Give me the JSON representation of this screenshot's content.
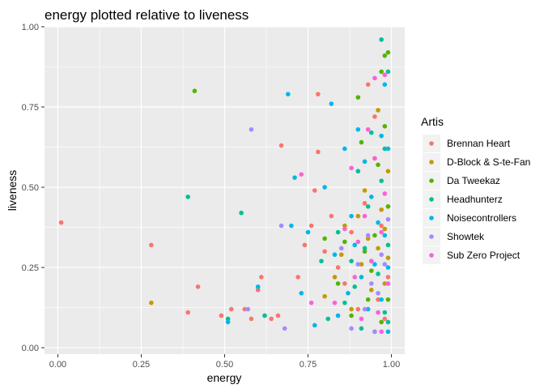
{
  "chart_data": {
    "type": "scatter",
    "title": "energy plotted relative to liveness",
    "xlabel": "energy",
    "ylabel": "liveness",
    "xlim": [
      -0.04,
      1.04
    ],
    "ylim": [
      -0.02,
      1.0
    ],
    "xticks": [
      "0.00",
      "0.25",
      "0.50",
      "0.75",
      "1.00"
    ],
    "xtick_values": [
      0,
      0.25,
      0.5,
      0.75,
      1.0
    ],
    "yticks": [
      "0.00",
      "0.25",
      "0.50",
      "0.75",
      "1.00"
    ],
    "ytick_values": [
      0,
      0.25,
      0.5,
      0.75,
      1.0
    ],
    "grid": true,
    "legend_position": "right",
    "legend_title": "Artis",
    "panel_background": "#EBEBEB",
    "series": [
      {
        "name": "Brennan Heart",
        "color": "#F8766D",
        "points": [
          [
            0.01,
            0.39
          ],
          [
            0.28,
            0.32
          ],
          [
            0.39,
            0.11
          ],
          [
            0.42,
            0.19
          ],
          [
            0.49,
            0.1
          ],
          [
            0.52,
            0.12
          ],
          [
            0.56,
            0.12
          ],
          [
            0.58,
            0.09
          ],
          [
            0.6,
            0.18
          ],
          [
            0.61,
            0.22
          ],
          [
            0.64,
            0.09
          ],
          [
            0.66,
            0.1
          ],
          [
            0.67,
            0.63
          ],
          [
            0.72,
            0.22
          ],
          [
            0.74,
            0.32
          ],
          [
            0.76,
            0.38
          ],
          [
            0.77,
            0.49
          ],
          [
            0.78,
            0.79
          ],
          [
            0.78,
            0.61
          ],
          [
            0.8,
            0.3
          ],
          [
            0.82,
            0.41
          ],
          [
            0.84,
            0.25
          ],
          [
            0.86,
            0.2
          ],
          [
            0.88,
            0.36
          ],
          [
            0.9,
            0.12
          ],
          [
            0.92,
            0.45
          ],
          [
            0.93,
            0.82
          ],
          [
            0.94,
            0.27
          ],
          [
            0.95,
            0.72
          ],
          [
            0.96,
            0.15
          ],
          [
            0.97,
            0.38
          ],
          [
            0.98,
            0.09
          ],
          [
            0.99,
            0.22
          ]
        ]
      },
      {
        "name": "D-Block & S-te-Fan",
        "color": "#C49A00",
        "points": [
          [
            0.28,
            0.14
          ],
          [
            0.8,
            0.16
          ],
          [
            0.83,
            0.22
          ],
          [
            0.85,
            0.29
          ],
          [
            0.86,
            0.38
          ],
          [
            0.88,
            0.12
          ],
          [
            0.9,
            0.41
          ],
          [
            0.91,
            0.26
          ],
          [
            0.92,
            0.49
          ],
          [
            0.93,
            0.34
          ],
          [
            0.94,
            0.18
          ],
          [
            0.95,
            0.59
          ],
          [
            0.96,
            0.31
          ],
          [
            0.96,
            0.74
          ],
          [
            0.97,
            0.43
          ],
          [
            0.98,
            0.2
          ],
          [
            0.98,
            0.37
          ],
          [
            0.99,
            0.28
          ],
          [
            0.99,
            0.55
          ]
        ]
      },
      {
        "name": "Da Tweekaz",
        "color": "#53B400",
        "points": [
          [
            0.41,
            0.8
          ],
          [
            0.8,
            0.34
          ],
          [
            0.84,
            0.2
          ],
          [
            0.86,
            0.33
          ],
          [
            0.88,
            0.1
          ],
          [
            0.9,
            0.78
          ],
          [
            0.91,
            0.64
          ],
          [
            0.92,
            0.3
          ],
          [
            0.93,
            0.15
          ],
          [
            0.94,
            0.24
          ],
          [
            0.95,
            0.35
          ],
          [
            0.96,
            0.57
          ],
          [
            0.97,
            0.86
          ],
          [
            0.98,
            0.91
          ],
          [
            0.98,
            0.69
          ],
          [
            0.99,
            0.92
          ],
          [
            0.99,
            0.44
          ],
          [
            0.99,
            0.15
          ],
          [
            0.97,
            0.08
          ]
        ]
      },
      {
        "name": "Headhunterz",
        "color": "#00C094",
        "points": [
          [
            0.39,
            0.47
          ],
          [
            0.51,
            0.09
          ],
          [
            0.55,
            0.42
          ],
          [
            0.62,
            0.1
          ],
          [
            0.79,
            0.27
          ],
          [
            0.81,
            0.09
          ],
          [
            0.84,
            0.36
          ],
          [
            0.86,
            0.14
          ],
          [
            0.88,
            0.27
          ],
          [
            0.89,
            0.19
          ],
          [
            0.9,
            0.55
          ],
          [
            0.91,
            0.06
          ],
          [
            0.92,
            0.31
          ],
          [
            0.93,
            0.44
          ],
          [
            0.94,
            0.67
          ],
          [
            0.95,
            0.05
          ],
          [
            0.96,
            0.23
          ],
          [
            0.97,
            0.96
          ],
          [
            0.97,
            0.52
          ],
          [
            0.98,
            0.62
          ],
          [
            0.98,
            0.11
          ],
          [
            0.99,
            0.32
          ],
          [
            0.99,
            0.86
          ],
          [
            0.99,
            0.08
          ]
        ]
      },
      {
        "name": "Noisecontrollers",
        "color": "#00B6EB",
        "points": [
          [
            0.51,
            0.08
          ],
          [
            0.6,
            0.19
          ],
          [
            0.69,
            0.79
          ],
          [
            0.7,
            0.38
          ],
          [
            0.71,
            0.53
          ],
          [
            0.73,
            0.17
          ],
          [
            0.75,
            0.36
          ],
          [
            0.77,
            0.07
          ],
          [
            0.8,
            0.5
          ],
          [
            0.82,
            0.76
          ],
          [
            0.83,
            0.29
          ],
          [
            0.84,
            0.1
          ],
          [
            0.86,
            0.62
          ],
          [
            0.87,
            0.17
          ],
          [
            0.88,
            0.41
          ],
          [
            0.89,
            0.32
          ],
          [
            0.9,
            0.68
          ],
          [
            0.91,
            0.22
          ],
          [
            0.92,
            0.58
          ],
          [
            0.93,
            0.12
          ],
          [
            0.94,
            0.47
          ],
          [
            0.95,
            0.26
          ],
          [
            0.96,
            0.39
          ],
          [
            0.97,
            0.66
          ],
          [
            0.97,
            0.15
          ],
          [
            0.98,
            0.82
          ],
          [
            0.98,
            0.35
          ],
          [
            0.99,
            0.25
          ],
          [
            0.99,
            0.62
          ],
          [
            0.99,
            0.05
          ]
        ]
      },
      {
        "name": "Showtek",
        "color": "#A58AFF",
        "points": [
          [
            0.58,
            0.68
          ],
          [
            0.57,
            0.12
          ],
          [
            0.67,
            0.38
          ],
          [
            0.68,
            0.06
          ],
          [
            0.85,
            0.31
          ],
          [
            0.88,
            0.06
          ],
          [
            0.9,
            0.26
          ],
          [
            0.92,
            0.12
          ],
          [
            0.93,
            0.35
          ],
          [
            0.94,
            0.2
          ],
          [
            0.95,
            0.05
          ],
          [
            0.96,
            0.17
          ],
          [
            0.97,
            0.29
          ],
          [
            0.98,
            0.26
          ],
          [
            0.99,
            0.4
          ]
        ]
      },
      {
        "name": "Sub Zero Project",
        "color": "#FB61D7",
        "points": [
          [
            0.73,
            0.54
          ],
          [
            0.76,
            0.14
          ],
          [
            0.83,
            0.14
          ],
          [
            0.86,
            0.37
          ],
          [
            0.88,
            0.56
          ],
          [
            0.89,
            0.22
          ],
          [
            0.9,
            0.33
          ],
          [
            0.91,
            0.09
          ],
          [
            0.92,
            0.41
          ],
          [
            0.93,
            0.68
          ],
          [
            0.94,
            0.27
          ],
          [
            0.95,
            0.59
          ],
          [
            0.95,
            0.84
          ],
          [
            0.96,
            0.11
          ],
          [
            0.97,
            0.36
          ],
          [
            0.98,
            0.85
          ],
          [
            0.98,
            0.48
          ],
          [
            0.99,
            0.2
          ],
          [
            0.97,
            0.05
          ]
        ]
      }
    ]
  }
}
